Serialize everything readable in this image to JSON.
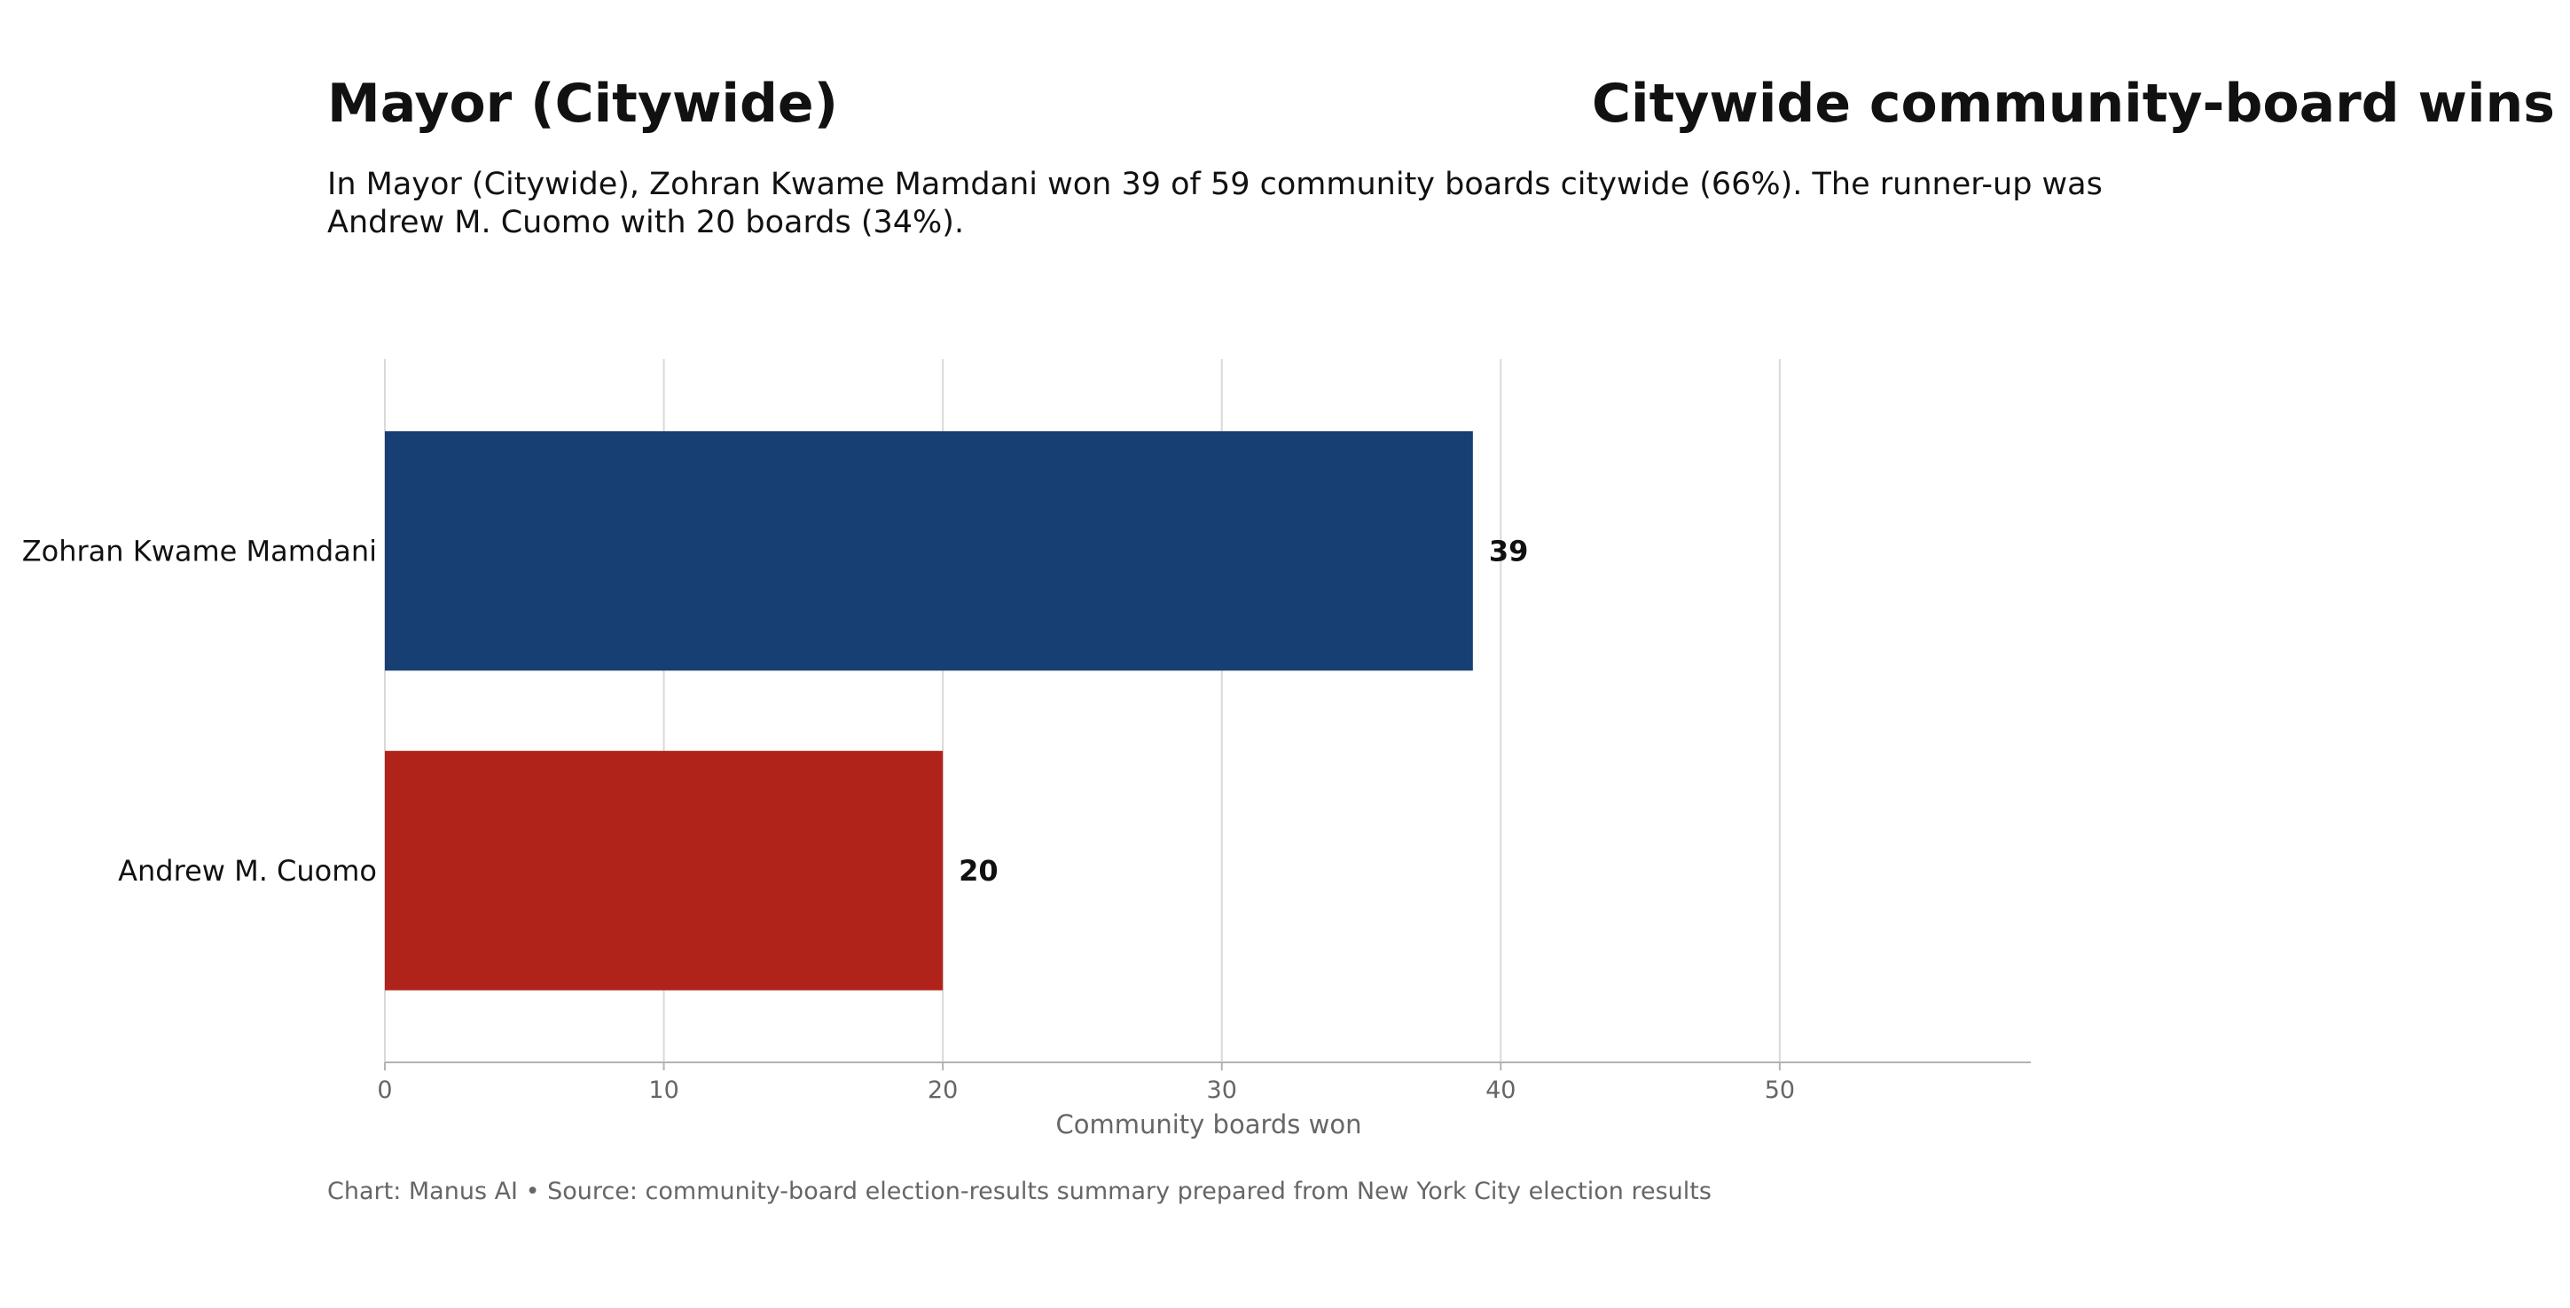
{
  "chart_data": {
    "type": "bar",
    "orientation": "horizontal",
    "title": "Mayor (Citywide)",
    "secondary_title": "Citywide community-board wins",
    "subtitle_lines": [
      "In Mayor (Citywide), Zohran Kwame Mamdani won 39 of 59 community boards citywide (66%). The runner-up was",
      "Andrew M. Cuomo with 20 boards (34%)."
    ],
    "categories": [
      "Zohran Kwame Mamdani",
      "Andrew M. Cuomo"
    ],
    "values": [
      39,
      20
    ],
    "value_labels": [
      "39",
      "20"
    ],
    "colors": [
      "#173f73",
      "#b0231a"
    ],
    "xlabel": "Community boards won",
    "ylabel": "",
    "xlim": [
      0,
      59
    ],
    "xticks": [
      0,
      10,
      20,
      30,
      40,
      50
    ],
    "xtick_labels": [
      "0",
      "10",
      "20",
      "30",
      "40",
      "50"
    ],
    "grid": "vertical",
    "legend": "none",
    "footer": "Chart: Manus AI • Source: community-board election-results summary prepared from New York City election results"
  }
}
